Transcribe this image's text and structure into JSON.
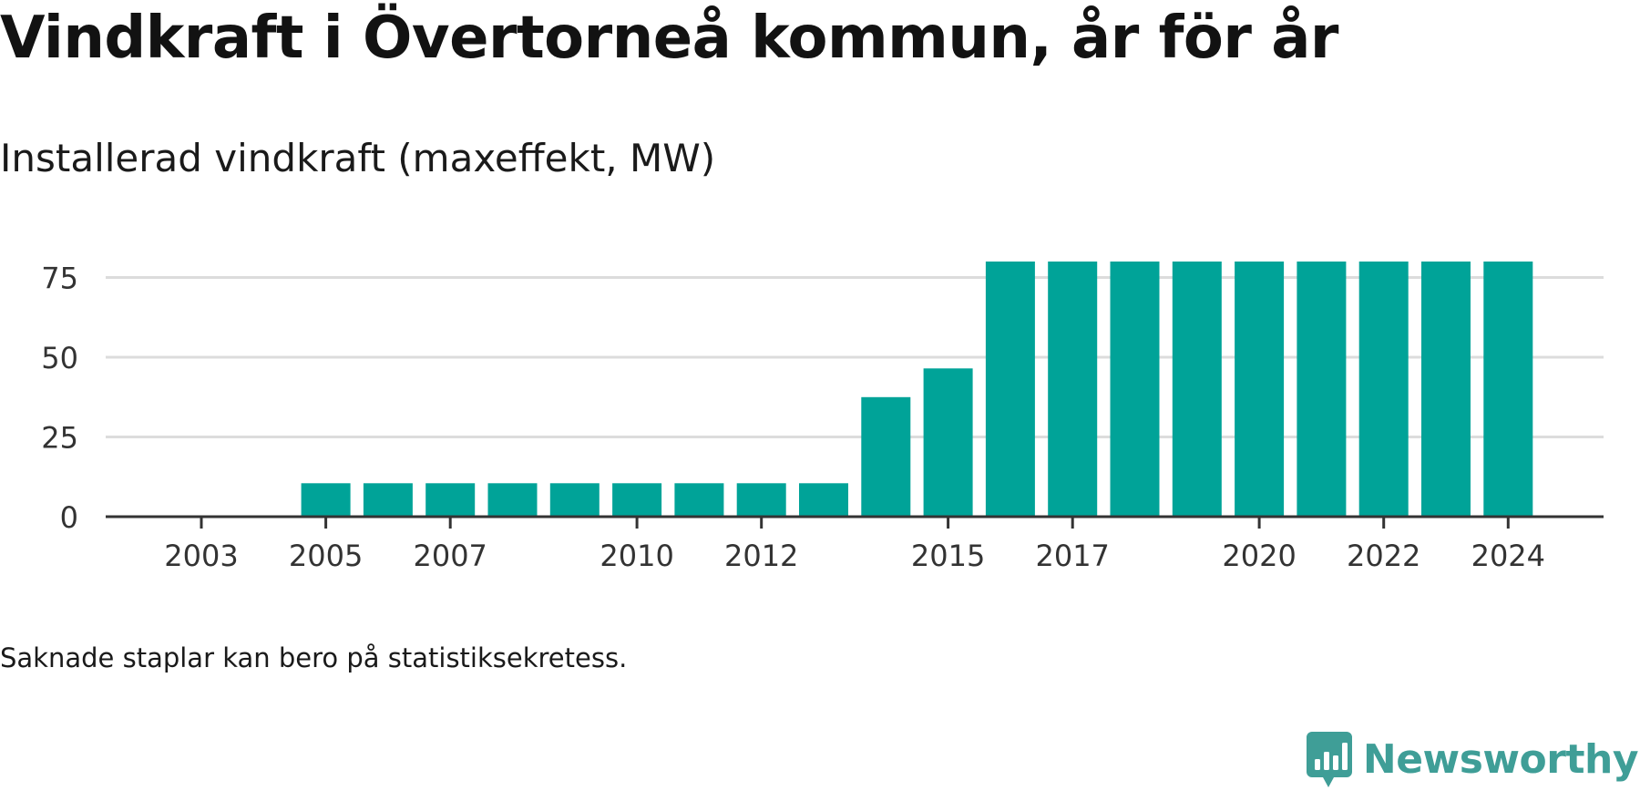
{
  "title": "Vindkraft i Övertorneå kommun, år för år",
  "subtitle": "Installerad vindkraft (maxeffekt, MW)",
  "note": "Saknade staplar kan bero på statistiksekretess.",
  "brand": {
    "name": "Newsworthy",
    "icon": "newsworthy-logo-icon",
    "color": "#3f9e97"
  },
  "colors": {
    "bar": "#00a398",
    "grid": "#dcdcdc",
    "axis": "#333333",
    "tick_text": "#333333"
  },
  "chart_data": {
    "type": "bar",
    "categories": [
      "2003",
      "2004",
      "2005",
      "2006",
      "2007",
      "2008",
      "2009",
      "2010",
      "2011",
      "2012",
      "2013",
      "2014",
      "2015",
      "2016",
      "2017",
      "2018",
      "2019",
      "2020",
      "2021",
      "2022",
      "2023",
      "2024"
    ],
    "values": [
      null,
      null,
      10.5,
      10.5,
      10.5,
      10.5,
      10.5,
      10.5,
      10.5,
      10.5,
      10.5,
      37.5,
      46.5,
      80,
      80,
      80,
      80,
      80,
      80,
      80,
      80,
      80
    ],
    "x_tick_labels": [
      "2003",
      "2005",
      "2007",
      "2010",
      "2012",
      "2015",
      "2017",
      "2020",
      "2022",
      "2024"
    ],
    "y_ticks": [
      0,
      25,
      50,
      75
    ],
    "ylim": [
      0,
      82
    ],
    "title": "Vindkraft i Övertorneå kommun, år för år",
    "subtitle": "Installerad vindkraft (maxeffekt, MW)",
    "xlabel": "",
    "ylabel": "",
    "grid": true,
    "legend": "none"
  }
}
